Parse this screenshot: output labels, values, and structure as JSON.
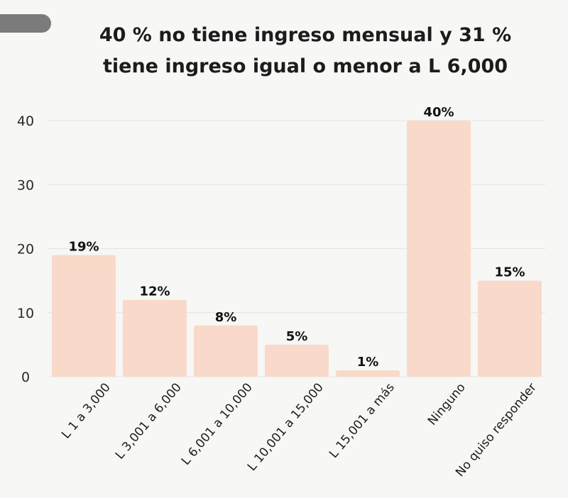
{
  "chart_data": {
    "type": "bar",
    "title_lines": [
      "40 % no tiene ingreso mensual y 31 %",
      "tiene ingreso igual o menor a L 6,000"
    ],
    "categories": [
      "L 1 a 3,000",
      "L 3,001 a 6,000",
      "L 6,001 a 10,000",
      "L 10,001 a 15,000",
      "L 15,001 a más",
      "Ninguno",
      "No quiso responder"
    ],
    "values": [
      19,
      12,
      8,
      5,
      1,
      40,
      15
    ],
    "data_labels": [
      "19%",
      "12%",
      "8%",
      "5%",
      "1%",
      "40%",
      "15%"
    ],
    "yticks": [
      0,
      10,
      20,
      30,
      40
    ],
    "ylim": [
      0,
      40
    ],
    "grid": true,
    "bar_color": "#f9d9c9",
    "grid_color": "#e4e4e4",
    "background_color": "#f7f7f5"
  }
}
